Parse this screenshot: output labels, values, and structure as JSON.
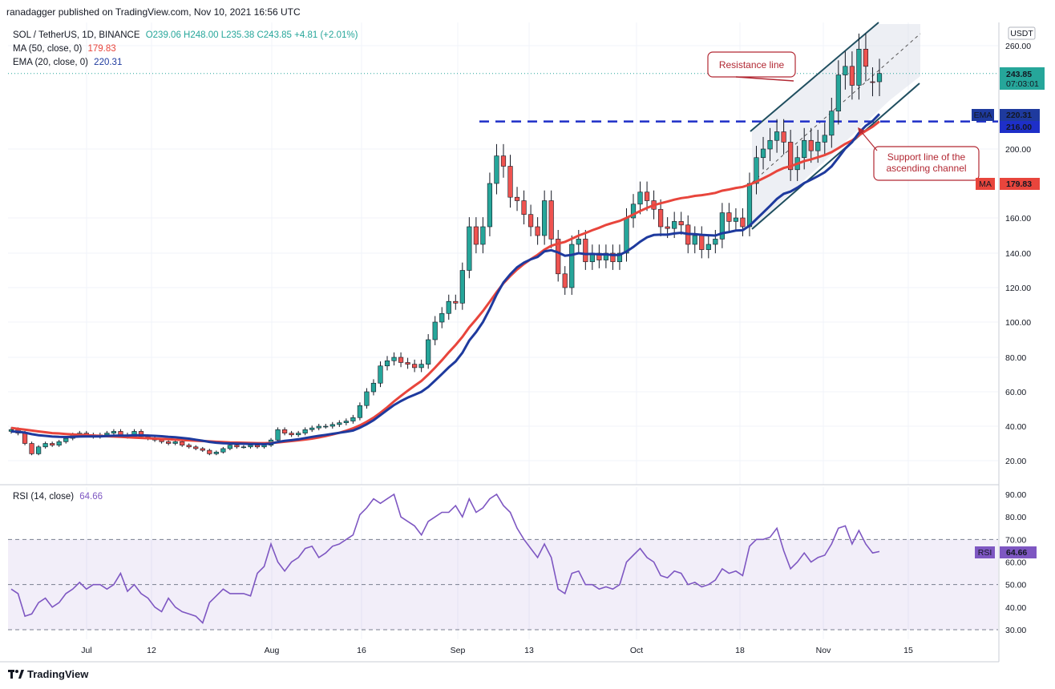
{
  "header": {
    "published": "ranadagger published on TradingView.com, Nov 10, 2021 16:56 UTC"
  },
  "legend": {
    "symbol": "SOL / TetherUS, 1D, BINANCE",
    "ohlc": "O239.06 H248.00 L235.38 C243.85 +4.81 (+2.01%)",
    "ma_label": "MA (50, close, 0)",
    "ma_value": "179.83",
    "ema_label": "EMA (20, close, 0)",
    "ema_value": "220.31",
    "rsi_label": "RSI (14, close)",
    "rsi_value": "64.66"
  },
  "colors": {
    "up": "#26a69a",
    "down": "#ef5350",
    "ma": "#e8453c",
    "ema": "#1e3a9e",
    "rsi": "#7e57c2",
    "annotation": "#b22833",
    "channel": "#1f4e5f"
  },
  "annotations": {
    "resistance": "Resistance line",
    "support_line1": "Support line of the",
    "support_line2": "ascending channel"
  },
  "price_badges": {
    "last": "243.85",
    "countdown": "07:03:01",
    "ema_tag": "EMA",
    "ema": "220.31",
    "level": "216.00",
    "ma_tag": "MA",
    "ma": "179.83",
    "currency": "USDT",
    "rsi_tag": "RSI",
    "rsi": "64.66"
  },
  "footer": {
    "brand": "TradingView"
  },
  "chart_data": {
    "type": "candlestick",
    "x_ticks": [
      "Jul",
      "12",
      "Aug",
      "16",
      "Sep",
      "13",
      "Oct",
      "18",
      "Nov",
      "15"
    ],
    "y_ticks": [
      20,
      40,
      60,
      80,
      100,
      120,
      140,
      160,
      200,
      260
    ],
    "y_tick_labels": [
      "20.00",
      "40.00",
      "60.00",
      "80.00",
      "100.00",
      "120.00",
      "140.00",
      "160.00",
      "200.00",
      "260.00"
    ],
    "ylim": [
      10,
      270
    ],
    "rsi_ticks": [
      30,
      40,
      50,
      60,
      70,
      80,
      90
    ],
    "rsi_tick_labels": [
      "30.00",
      "40.00",
      "50.00",
      "60.00",
      "70.00",
      "80.00",
      "90.00"
    ],
    "rsi_ylim": [
      27,
      92
    ],
    "horizontal_level": 216,
    "close": [
      38,
      36,
      30,
      24,
      28,
      30,
      29,
      31,
      33,
      35,
      36,
      35,
      34,
      35,
      36,
      37,
      35,
      34,
      37,
      34,
      33,
      32,
      31,
      30,
      31,
      29,
      28,
      27,
      26,
      24,
      25,
      27,
      29,
      28,
      28,
      29,
      28,
      29,
      32,
      38,
      36,
      35,
      36,
      38,
      39,
      40,
      40,
      41,
      42,
      43,
      45,
      52,
      60,
      65,
      75,
      78,
      80,
      77,
      76,
      74,
      76,
      90,
      100,
      105,
      112,
      111,
      130,
      155,
      145,
      155,
      180,
      196,
      190,
      172,
      170,
      162,
      155,
      150,
      170,
      148,
      128,
      120,
      145,
      148,
      135,
      140,
      136,
      140,
      135,
      140,
      160,
      168,
      175,
      170,
      165,
      155,
      154,
      158,
      156,
      145,
      150,
      142,
      145,
      148,
      163,
      158,
      160,
      155,
      180,
      195,
      200,
      205,
      210,
      204,
      188,
      195,
      205,
      199,
      204,
      208,
      222,
      243,
      248,
      237,
      258,
      248,
      239,
      243.85
    ],
    "open": [
      37,
      38,
      36,
      30,
      24,
      28,
      30,
      29,
      31,
      33,
      35,
      36,
      35,
      34,
      35,
      36,
      37,
      35,
      34,
      37,
      34,
      33,
      32,
      31,
      30,
      31,
      29,
      28,
      27,
      26,
      24,
      25,
      27,
      29,
      28,
      28,
      29,
      28,
      29,
      32,
      38,
      36,
      35,
      36,
      38,
      39,
      40,
      40,
      41,
      42,
      43,
      45,
      52,
      60,
      65,
      75,
      78,
      80,
      77,
      76,
      74,
      76,
      90,
      100,
      105,
      112,
      111,
      130,
      155,
      145,
      155,
      180,
      196,
      190,
      172,
      170,
      162,
      155,
      150,
      170,
      148,
      128,
      120,
      145,
      148,
      135,
      140,
      136,
      140,
      135,
      140,
      160,
      168,
      175,
      170,
      165,
      155,
      154,
      158,
      156,
      145,
      150,
      142,
      145,
      148,
      163,
      158,
      160,
      155,
      180,
      195,
      200,
      205,
      210,
      204,
      188,
      195,
      205,
      199,
      204,
      208,
      222,
      243,
      248,
      237,
      258,
      239.06,
      239.06
    ],
    "ma50": [
      39,
      38.5,
      38,
      37.5,
      37,
      36.5,
      36,
      35.8,
      35.5,
      35.2,
      35,
      34.8,
      34.6,
      34.4,
      34.2,
      34,
      33.8,
      33.6,
      33.4,
      33.2,
      33,
      32.8,
      32.6,
      32.4,
      32.2,
      32,
      31.8,
      31.6,
      31.4,
      31.2,
      31,
      30.8,
      30.6,
      30.5,
      30.4,
      30.3,
      30.2,
      30.2,
      30.3,
      30.6,
      31,
      31.4,
      31.8,
      32.3,
      32.8,
      33.5,
      34.3,
      35.2,
      36.2,
      37.4,
      38.8,
      40.5,
      42.6,
      45,
      47.8,
      51,
      54.4,
      57.6,
      60.6,
      63.5,
      66.3,
      70,
      74,
      78.3,
      82.8,
      87,
      91.6,
      97,
      101.6,
      106.4,
      111.8,
      117.4,
      122.5,
      126.7,
      130.5,
      133.7,
      136.5,
      139,
      142,
      144.2,
      145.4,
      146.4,
      148.2,
      150,
      151.4,
      153,
      154.4,
      156,
      157.2,
      158.3,
      160,
      162,
      164,
      165.8,
      167.4,
      168.5,
      169.5,
      170.6,
      171.5,
      172,
      172.8,
      173.2,
      173.8,
      174.5,
      175.8,
      176.5,
      177.4,
      178,
      179.3,
      181,
      183,
      185,
      187.2,
      189,
      190,
      191.5,
      193,
      194,
      195.2,
      196.5,
      198.2,
      200.5,
      203,
      205,
      208,
      210.5,
      213,
      179.83
    ],
    "ema20": [
      37,
      36.8,
      36.3,
      35.4,
      34.8,
      34.4,
      34,
      33.8,
      33.7,
      33.8,
      34,
      34.1,
      34.1,
      34.1,
      34.3,
      34.5,
      34.5,
      34.5,
      34.8,
      34.7,
      34.6,
      34.4,
      34.2,
      33.8,
      33.6,
      33.2,
      32.8,
      32.2,
      31.6,
      30.9,
      30.4,
      30.1,
      30,
      29.9,
      29.8,
      29.7,
      29.7,
      29.6,
      29.9,
      30.9,
      31.5,
      31.9,
      32.4,
      33.1,
      33.8,
      34.4,
      35,
      35.6,
      36.2,
      36.8,
      37.5,
      39.1,
      41.1,
      43.5,
      46.4,
      49.4,
      52.3,
      54.6,
      56.6,
      58.3,
      60,
      62.8,
      66.5,
      70.3,
      74.2,
      77.6,
      82.6,
      89.5,
      94.3,
      100,
      107.6,
      116,
      123,
      127.7,
      131.8,
      134.5,
      136.4,
      137.8,
      141,
      141.7,
      140.4,
      138.5,
      139,
      140,
      139.5,
      139.6,
      139.3,
      139.3,
      138.9,
      139,
      140.9,
      143.5,
      146.5,
      149,
      150.3,
      150.5,
      150.5,
      151.2,
      151.6,
      150.9,
      150.8,
      150.4,
      150.2,
      150,
      151.3,
      152,
      152.8,
      153,
      155.6,
      159.3,
      163.1,
      167,
      171,
      174,
      175.3,
      177.6,
      180.3,
      182.2,
      184.3,
      186.5,
      189.9,
      195,
      200.3,
      204,
      209.4,
      213.4,
      216.3,
      220.31
    ],
    "rsi": [
      48,
      46,
      36,
      37,
      42,
      44,
      40,
      42,
      46,
      48,
      51,
      48,
      50,
      50,
      48,
      50,
      55,
      47,
      50,
      46,
      44,
      40,
      38,
      44,
      40,
      38,
      37,
      36,
      33,
      42,
      45,
      48,
      46,
      46,
      46,
      45,
      55,
      58,
      68,
      60,
      56,
      60,
      62,
      66,
      67,
      62,
      64,
      67,
      68,
      70,
      72,
      81,
      84,
      88,
      86,
      88,
      90,
      80,
      78,
      76,
      72,
      78,
      80,
      82,
      82,
      85,
      80,
      88,
      82,
      84,
      88,
      90,
      85,
      82,
      75,
      70,
      66,
      62,
      68,
      62,
      48,
      46,
      55,
      56,
      50,
      50,
      48,
      49,
      48,
      50,
      60,
      63,
      66,
      62,
      60,
      54,
      53,
      56,
      55,
      50,
      51,
      49,
      50,
      52,
      57,
      55,
      56,
      54,
      67,
      70,
      70,
      71,
      75,
      65,
      57,
      60,
      64,
      60,
      62,
      63,
      68,
      75,
      76,
      68,
      74,
      68,
      64,
      64.66
    ]
  }
}
